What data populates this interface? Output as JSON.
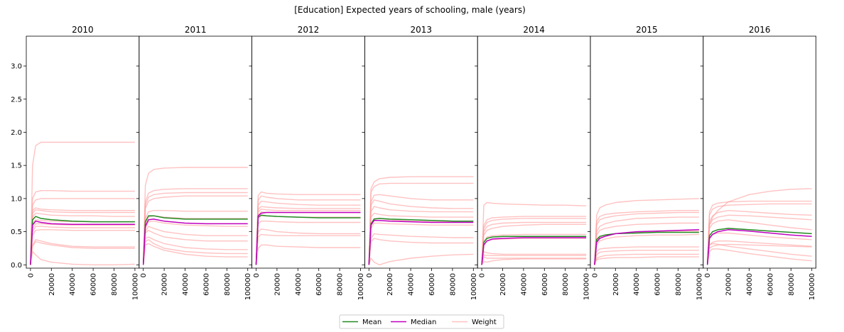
{
  "chart_data": {
    "type": "line",
    "title": "[Education] Expected years of schooling, male (years)",
    "ylim": [
      -0.05,
      3.45
    ],
    "xlim": [
      -4000,
      104000
    ],
    "y_ticks": [
      0.0,
      0.5,
      1.0,
      1.5,
      2.0,
      2.5,
      3.0
    ],
    "y_tick_labels": [
      "0.0",
      "0.5",
      "1.0",
      "1.5",
      "2.0",
      "2.5",
      "3.0"
    ],
    "x_ticks": [
      0,
      20000,
      40000,
      60000,
      80000,
      100000
    ],
    "x_tick_labels": [
      "0",
      "20000",
      "40000",
      "60000",
      "80000",
      "100000"
    ],
    "legend": {
      "placement": "bottom-center",
      "entries": [
        "Mean",
        "Median",
        "Weight"
      ]
    },
    "colors": {
      "mean": "#228b22",
      "median": "#bf00bf",
      "weight": "#ff9a9a"
    },
    "x": [
      0,
      2000,
      5000,
      10000,
      20000,
      40000,
      60000,
      80000,
      100000
    ],
    "panels": [
      {
        "title": "2010",
        "mean": [
          0.0,
          0.68,
          0.73,
          0.7,
          0.68,
          0.66,
          0.65,
          0.65,
          0.65
        ],
        "median": [
          0.0,
          0.6,
          0.66,
          0.64,
          0.62,
          0.61,
          0.61,
          0.61,
          0.61
        ],
        "weights": [
          [
            0.0,
            1.5,
            1.8,
            1.85,
            1.85,
            1.85,
            1.85,
            1.85,
            1.85
          ],
          [
            0.0,
            1.0,
            1.1,
            1.12,
            1.12,
            1.11,
            1.11,
            1.11,
            1.11
          ],
          [
            0.0,
            0.9,
            0.98,
            1.0,
            1.0,
            1.0,
            1.0,
            1.0,
            1.0
          ],
          [
            0.0,
            0.82,
            0.86,
            0.84,
            0.83,
            0.82,
            0.82,
            0.82,
            0.82
          ],
          [
            0.0,
            0.78,
            0.83,
            0.82,
            0.8,
            0.79,
            0.79,
            0.79,
            0.79
          ],
          [
            0.0,
            0.72,
            0.78,
            0.77,
            0.75,
            0.74,
            0.74,
            0.73,
            0.73
          ],
          [
            0.0,
            0.62,
            0.68,
            0.67,
            0.66,
            0.65,
            0.65,
            0.65,
            0.65
          ],
          [
            0.0,
            0.55,
            0.62,
            0.62,
            0.61,
            0.6,
            0.6,
            0.6,
            0.6
          ],
          [
            0.0,
            0.5,
            0.58,
            0.58,
            0.57,
            0.56,
            0.56,
            0.56,
            0.56
          ],
          [
            0.0,
            0.45,
            0.52,
            0.53,
            0.53,
            0.52,
            0.52,
            0.52,
            0.52
          ],
          [
            0.0,
            0.3,
            0.38,
            0.36,
            0.32,
            0.28,
            0.27,
            0.27,
            0.27
          ],
          [
            0.0,
            0.28,
            0.35,
            0.33,
            0.3,
            0.26,
            0.25,
            0.25,
            0.25
          ],
          [
            0.0,
            0.2,
            0.15,
            0.08,
            0.04,
            0.01,
            0.0,
            0.0,
            0.01
          ]
        ]
      },
      {
        "title": "2011",
        "mean": [
          0.0,
          0.65,
          0.74,
          0.74,
          0.71,
          0.69,
          0.69,
          0.69,
          0.69
        ],
        "median": [
          0.0,
          0.58,
          0.68,
          0.69,
          0.66,
          0.63,
          0.62,
          0.62,
          0.62
        ],
        "weights": [
          [
            0.0,
            1.2,
            1.38,
            1.44,
            1.46,
            1.47,
            1.47,
            1.47,
            1.47
          ],
          [
            0.0,
            0.95,
            1.08,
            1.12,
            1.14,
            1.15,
            1.15,
            1.15,
            1.15
          ],
          [
            0.0,
            0.9,
            1.02,
            1.06,
            1.08,
            1.09,
            1.09,
            1.09,
            1.09
          ],
          [
            0.0,
            0.85,
            0.96,
            1.0,
            1.02,
            1.04,
            1.04,
            1.04,
            1.04
          ],
          [
            0.0,
            0.7,
            0.8,
            0.82,
            0.82,
            0.81,
            0.81,
            0.81,
            0.81
          ],
          [
            0.0,
            0.62,
            0.72,
            0.74,
            0.72,
            0.7,
            0.7,
            0.7,
            0.7
          ],
          [
            0.0,
            0.55,
            0.65,
            0.66,
            0.63,
            0.6,
            0.59,
            0.58,
            0.58
          ],
          [
            0.0,
            0.5,
            0.58,
            0.55,
            0.5,
            0.46,
            0.44,
            0.44,
            0.44
          ],
          [
            0.0,
            0.48,
            0.52,
            0.48,
            0.42,
            0.38,
            0.36,
            0.36,
            0.36
          ],
          [
            0.0,
            0.4,
            0.42,
            0.38,
            0.32,
            0.26,
            0.24,
            0.23,
            0.23
          ],
          [
            0.0,
            0.35,
            0.38,
            0.32,
            0.25,
            0.2,
            0.18,
            0.17,
            0.17
          ],
          [
            0.0,
            0.3,
            0.32,
            0.28,
            0.22,
            0.16,
            0.13,
            0.12,
            0.12
          ]
        ]
      },
      {
        "title": "2012",
        "mean": [
          0.0,
          0.72,
          0.75,
          0.74,
          0.73,
          0.72,
          0.71,
          0.71,
          0.71
        ],
        "median": [
          0.0,
          0.74,
          0.78,
          0.79,
          0.79,
          0.79,
          0.79,
          0.79,
          0.79
        ],
        "weights": [
          [
            0.0,
            1.05,
            1.1,
            1.08,
            1.07,
            1.06,
            1.06,
            1.06,
            1.06
          ],
          [
            0.0,
            0.98,
            1.04,
            1.02,
            1.0,
            0.98,
            0.98,
            0.98,
            0.98
          ],
          [
            0.0,
            0.9,
            0.96,
            0.95,
            0.93,
            0.91,
            0.9,
            0.9,
            0.9
          ],
          [
            0.0,
            0.84,
            0.88,
            0.87,
            0.86,
            0.85,
            0.85,
            0.85,
            0.85
          ],
          [
            0.0,
            0.8,
            0.84,
            0.83,
            0.82,
            0.82,
            0.82,
            0.82,
            0.82
          ],
          [
            0.0,
            0.75,
            0.8,
            0.79,
            0.79,
            0.79,
            0.79,
            0.79,
            0.79
          ],
          [
            0.0,
            0.7,
            0.74,
            0.74,
            0.73,
            0.72,
            0.72,
            0.72,
            0.72
          ],
          [
            0.0,
            0.62,
            0.66,
            0.66,
            0.65,
            0.64,
            0.64,
            0.64,
            0.64
          ],
          [
            0.0,
            0.5,
            0.54,
            0.53,
            0.5,
            0.48,
            0.47,
            0.47,
            0.47
          ],
          [
            0.0,
            0.42,
            0.46,
            0.45,
            0.44,
            0.44,
            0.44,
            0.44,
            0.44
          ],
          [
            0.0,
            0.25,
            0.3,
            0.3,
            0.28,
            0.27,
            0.26,
            0.26,
            0.26
          ]
        ]
      },
      {
        "title": "2013",
        "mean": [
          0.0,
          0.62,
          0.69,
          0.7,
          0.69,
          0.68,
          0.67,
          0.66,
          0.66
        ],
        "median": [
          0.0,
          0.6,
          0.67,
          0.67,
          0.66,
          0.65,
          0.64,
          0.64,
          0.64
        ],
        "weights": [
          [
            0.0,
            1.15,
            1.25,
            1.3,
            1.32,
            1.33,
            1.33,
            1.33,
            1.33
          ],
          [
            0.0,
            1.1,
            1.18,
            1.22,
            1.23,
            1.23,
            1.23,
            1.23,
            1.23
          ],
          [
            0.0,
            0.95,
            1.05,
            1.06,
            1.04,
            1.0,
            0.98,
            0.98,
            0.98
          ],
          [
            0.0,
            0.9,
            0.98,
            0.96,
            0.92,
            0.88,
            0.86,
            0.85,
            0.85
          ],
          [
            0.0,
            0.8,
            0.88,
            0.86,
            0.83,
            0.81,
            0.8,
            0.8,
            0.8
          ],
          [
            0.0,
            0.72,
            0.78,
            0.76,
            0.74,
            0.73,
            0.72,
            0.72,
            0.72
          ],
          [
            0.0,
            0.62,
            0.7,
            0.7,
            0.68,
            0.66,
            0.65,
            0.65,
            0.65
          ],
          [
            0.0,
            0.55,
            0.63,
            0.63,
            0.62,
            0.61,
            0.6,
            0.6,
            0.6
          ],
          [
            0.0,
            0.4,
            0.47,
            0.46,
            0.45,
            0.43,
            0.42,
            0.41,
            0.41
          ],
          [
            0.0,
            0.35,
            0.4,
            0.38,
            0.36,
            0.34,
            0.33,
            0.33,
            0.33
          ],
          [
            0.0,
            0.1,
            0.04,
            0.0,
            0.05,
            0.1,
            0.13,
            0.15,
            0.16
          ]
        ]
      },
      {
        "title": "2014",
        "mean": [
          0.0,
          0.34,
          0.4,
          0.42,
          0.43,
          0.43,
          0.43,
          0.43,
          0.43
        ],
        "median": [
          0.0,
          0.3,
          0.36,
          0.39,
          0.4,
          0.41,
          0.41,
          0.41,
          0.41
        ],
        "weights": [
          [
            0.0,
            0.9,
            0.94,
            0.93,
            0.92,
            0.91,
            0.9,
            0.9,
            0.89
          ],
          [
            0.0,
            0.6,
            0.68,
            0.71,
            0.72,
            0.73,
            0.73,
            0.73,
            0.73
          ],
          [
            0.0,
            0.55,
            0.64,
            0.67,
            0.69,
            0.7,
            0.7,
            0.7,
            0.7
          ],
          [
            0.0,
            0.5,
            0.58,
            0.61,
            0.63,
            0.64,
            0.64,
            0.64,
            0.64
          ],
          [
            0.0,
            0.45,
            0.52,
            0.55,
            0.58,
            0.6,
            0.61,
            0.61,
            0.61
          ],
          [
            0.0,
            0.35,
            0.42,
            0.44,
            0.45,
            0.46,
            0.46,
            0.46,
            0.46
          ],
          [
            0.0,
            0.3,
            0.36,
            0.38,
            0.39,
            0.4,
            0.4,
            0.4,
            0.4
          ],
          [
            0.0,
            0.2,
            0.18,
            0.17,
            0.16,
            0.16,
            0.16,
            0.16,
            0.16
          ],
          [
            0.0,
            0.15,
            0.14,
            0.14,
            0.14,
            0.14,
            0.14,
            0.14,
            0.14
          ],
          [
            0.0,
            0.12,
            0.1,
            0.1,
            0.1,
            0.1,
            0.1,
            0.1,
            0.1
          ],
          [
            0.0,
            0.05,
            0.04,
            0.06,
            0.08,
            0.09,
            0.09,
            0.09,
            0.09
          ]
        ]
      },
      {
        "title": "2015",
        "mean": [
          0.0,
          0.38,
          0.43,
          0.45,
          0.47,
          0.48,
          0.49,
          0.49,
          0.49
        ],
        "median": [
          0.0,
          0.34,
          0.4,
          0.43,
          0.47,
          0.5,
          0.51,
          0.52,
          0.53
        ],
        "weights": [
          [
            0.0,
            0.75,
            0.86,
            0.9,
            0.94,
            0.97,
            0.98,
            0.99,
            1.0
          ],
          [
            0.0,
            0.65,
            0.73,
            0.76,
            0.78,
            0.8,
            0.81,
            0.82,
            0.82
          ],
          [
            0.0,
            0.6,
            0.68,
            0.71,
            0.74,
            0.77,
            0.78,
            0.79,
            0.79
          ],
          [
            0.0,
            0.5,
            0.58,
            0.62,
            0.66,
            0.7,
            0.71,
            0.72,
            0.72
          ],
          [
            0.0,
            0.45,
            0.52,
            0.55,
            0.58,
            0.61,
            0.62,
            0.63,
            0.63
          ],
          [
            0.0,
            0.35,
            0.42,
            0.45,
            0.47,
            0.49,
            0.5,
            0.51,
            0.51
          ],
          [
            0.0,
            0.3,
            0.36,
            0.39,
            0.42,
            0.44,
            0.45,
            0.45,
            0.46
          ],
          [
            0.0,
            0.2,
            0.24,
            0.25,
            0.26,
            0.27,
            0.27,
            0.27,
            0.27
          ],
          [
            0.0,
            0.15,
            0.19,
            0.2,
            0.21,
            0.22,
            0.22,
            0.22,
            0.22
          ],
          [
            0.0,
            0.1,
            0.12,
            0.14,
            0.15,
            0.16,
            0.16,
            0.16,
            0.16
          ],
          [
            0.0,
            0.08,
            0.09,
            0.1,
            0.11,
            0.11,
            0.12,
            0.12,
            0.12
          ]
        ]
      },
      {
        "title": "2016",
        "mean": [
          0.0,
          0.44,
          0.5,
          0.53,
          0.55,
          0.53,
          0.51,
          0.49,
          0.47
        ],
        "median": [
          0.0,
          0.4,
          0.46,
          0.5,
          0.53,
          0.51,
          0.48,
          0.45,
          0.43
        ],
        "weights": [
          [
            0.0,
            0.6,
            0.72,
            0.82,
            0.95,
            1.06,
            1.11,
            1.14,
            1.15
          ],
          [
            0.0,
            0.8,
            0.9,
            0.93,
            0.95,
            0.96,
            0.96,
            0.96,
            0.96
          ],
          [
            0.0,
            0.75,
            0.84,
            0.88,
            0.9,
            0.91,
            0.92,
            0.92,
            0.92
          ],
          [
            0.0,
            0.65,
            0.74,
            0.79,
            0.82,
            0.8,
            0.78,
            0.76,
            0.75
          ],
          [
            0.0,
            0.6,
            0.68,
            0.72,
            0.75,
            0.74,
            0.72,
            0.7,
            0.68
          ],
          [
            0.0,
            0.55,
            0.62,
            0.66,
            0.68,
            0.64,
            0.6,
            0.56,
            0.53
          ],
          [
            0.0,
            0.4,
            0.46,
            0.48,
            0.48,
            0.45,
            0.42,
            0.4,
            0.38
          ],
          [
            0.0,
            0.3,
            0.34,
            0.36,
            0.36,
            0.34,
            0.32,
            0.3,
            0.28
          ],
          [
            0.0,
            0.25,
            0.28,
            0.3,
            0.31,
            0.3,
            0.29,
            0.28,
            0.27
          ],
          [
            0.0,
            0.3,
            0.32,
            0.31,
            0.28,
            0.24,
            0.2,
            0.16,
            0.13
          ],
          [
            0.0,
            0.2,
            0.24,
            0.24,
            0.22,
            0.17,
            0.13,
            0.09,
            0.06
          ]
        ]
      }
    ]
  }
}
